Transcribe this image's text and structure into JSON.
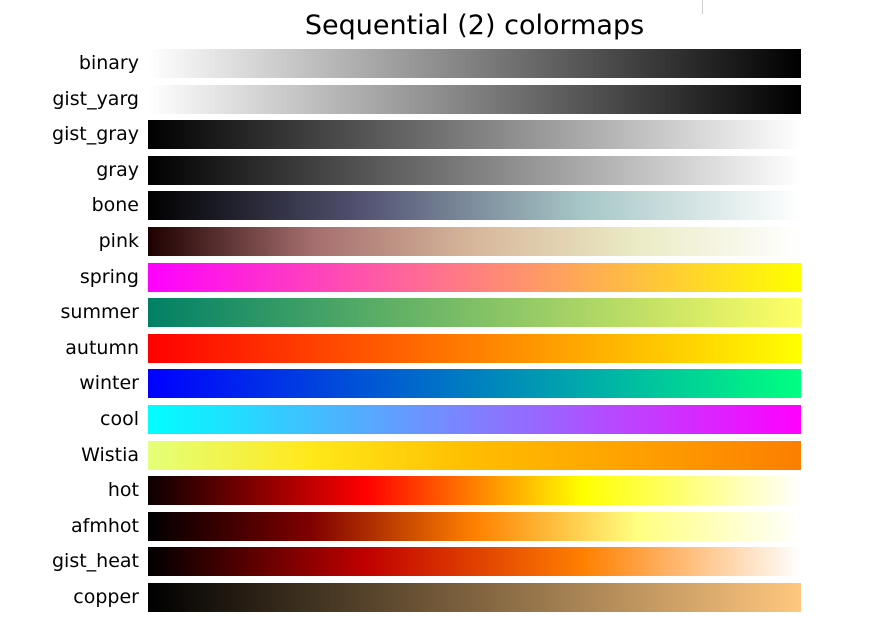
{
  "chart_data": {
    "type": "heatmap",
    "title": "Sequential (2) colormaps",
    "colormaps": [
      {
        "name": "binary",
        "stops": [
          "#ffffff",
          "#000000"
        ]
      },
      {
        "name": "gist_yarg",
        "stops": [
          "#ffffff",
          "#000000"
        ]
      },
      {
        "name": "gist_gray",
        "stops": [
          "#000000",
          "#ffffff"
        ]
      },
      {
        "name": "gray",
        "stops": [
          "#000000",
          "#ffffff"
        ]
      },
      {
        "name": "bone",
        "stops": [
          "#000000",
          "#545474",
          "#a7c7c7",
          "#ffffff"
        ]
      },
      {
        "name": "pink",
        "stops": [
          "#1e0000",
          "#a46d6d",
          "#d7b79b",
          "#ebebc6",
          "#ffffff"
        ]
      },
      {
        "name": "spring",
        "stops": [
          "#ff00ff",
          "#ffff00"
        ]
      },
      {
        "name": "summer",
        "stops": [
          "#008066",
          "#ffff66"
        ]
      },
      {
        "name": "autumn",
        "stops": [
          "#ff0000",
          "#ffff00"
        ]
      },
      {
        "name": "winter",
        "stops": [
          "#0000ff",
          "#00ff80"
        ]
      },
      {
        "name": "cool",
        "stops": [
          "#00ffff",
          "#ff00ff"
        ]
      },
      {
        "name": "Wistia",
        "stops": [
          "#e4ff7a",
          "#ffe81a",
          "#ffbd00",
          "#ffa000",
          "#fc7f00"
        ]
      },
      {
        "name": "hot",
        "stops": [
          "#0b0000",
          "#ff0000",
          "#ffff00",
          "#ffffff"
        ]
      },
      {
        "name": "afmhot",
        "stops": [
          "#000000",
          "#800000",
          "#ff8000",
          "#ffff80",
          "#ffffff"
        ]
      },
      {
        "name": "gist_heat",
        "stops": [
          "#000000",
          "#c00000",
          "#ff8000",
          "#ffffff"
        ]
      },
      {
        "name": "copper",
        "stops": [
          "#000000",
          "#ffc77f"
        ]
      }
    ]
  }
}
